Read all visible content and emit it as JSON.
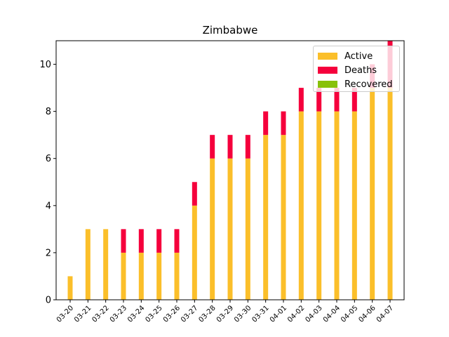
{
  "chart_data": {
    "type": "bar",
    "stacked": true,
    "title": "Zimbabwe",
    "xlabel": "",
    "ylabel": "",
    "ylim": [
      0,
      11
    ],
    "yticks": [
      0,
      2,
      4,
      6,
      8,
      10
    ],
    "categories": [
      "03-20",
      "03-21",
      "03-22",
      "03-23",
      "03-24",
      "03-25",
      "03-26",
      "03-27",
      "03-28",
      "03-29",
      "03-30",
      "03-31",
      "04-01",
      "04-02",
      "04-03",
      "04-04",
      "04-05",
      "04-06",
      "04-07"
    ],
    "series": [
      {
        "name": "Active",
        "color": "#fbbf2a",
        "values": [
          1,
          3,
          3,
          2,
          2,
          2,
          2,
          4,
          6,
          6,
          6,
          7,
          7,
          8,
          8,
          8,
          8,
          9,
          9
        ]
      },
      {
        "name": "Deaths",
        "color": "#f5003c",
        "values": [
          0,
          0,
          0,
          1,
          1,
          1,
          1,
          1,
          1,
          1,
          1,
          1,
          1,
          1,
          1,
          1,
          1,
          1,
          2
        ]
      },
      {
        "name": "Recovered",
        "color": "#88c10a",
        "values": [
          0,
          0,
          0,
          0,
          0,
          0,
          0,
          0,
          0,
          0,
          0,
          0,
          0,
          0,
          0,
          0,
          0,
          0,
          0
        ]
      }
    ],
    "grid": false,
    "legend_position": "top-right"
  }
}
